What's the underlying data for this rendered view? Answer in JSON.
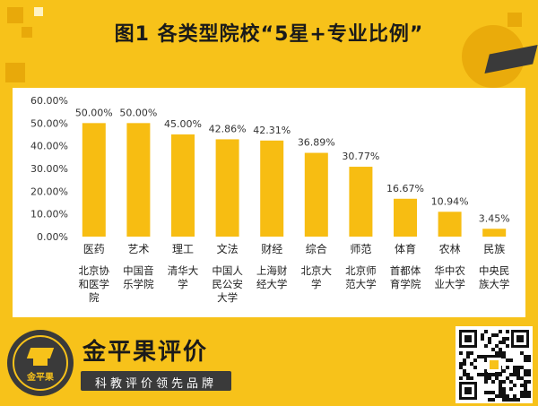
{
  "title": "图1   各类型院校“5星+专业比例”",
  "brand": {
    "name": "金平果评价",
    "slogan": "科教评价领先品牌",
    "logo_text": "金平果"
  },
  "colors": {
    "background": "#f7c21a",
    "bar": "#f7bd12",
    "panel": "#ffffff",
    "dark": "#3a3a3a"
  },
  "chart_data": {
    "type": "bar",
    "categories": [
      "医药",
      "艺术",
      "理工",
      "文法",
      "财经",
      "综合",
      "师范",
      "体育",
      "农林",
      "民族"
    ],
    "sublabels": [
      [
        "北京协",
        "和医学",
        "院"
      ],
      [
        "中国音",
        "乐学院"
      ],
      [
        "清华大",
        "学"
      ],
      [
        "中国人",
        "民公安",
        "大学"
      ],
      [
        "上海财",
        "经大学"
      ],
      [
        "北京大",
        "学"
      ],
      [
        "北京师",
        "范大学"
      ],
      [
        "首都体",
        "育学院"
      ],
      [
        "华中农",
        "业大学"
      ],
      [
        "中央民",
        "族大学"
      ]
    ],
    "values": [
      50.0,
      50.0,
      45.0,
      42.86,
      42.31,
      36.89,
      30.77,
      16.67,
      10.94,
      3.45
    ],
    "value_labels": [
      "50.00%",
      "50.00%",
      "45.00%",
      "42.86%",
      "42.31%",
      "36.89%",
      "30.77%",
      "16.67%",
      "10.94%",
      "3.45%"
    ],
    "ylim": [
      0,
      60
    ],
    "yticks": [
      0,
      10,
      20,
      30,
      40,
      50,
      60
    ],
    "ytick_labels": [
      "0.00%",
      "10.00%",
      "20.00%",
      "30.00%",
      "40.00%",
      "50.00%",
      "60.00%"
    ],
    "grid": false,
    "legend": "none"
  },
  "icons": {
    "logo": "graduation-cap-icon",
    "qr": "qr-code-icon"
  }
}
